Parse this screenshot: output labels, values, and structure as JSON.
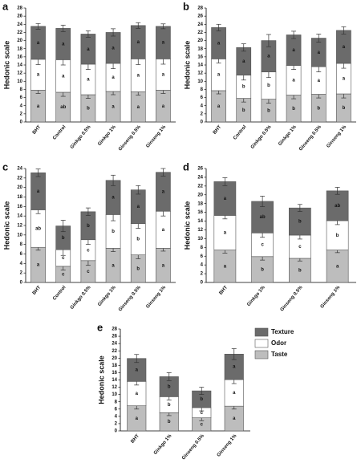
{
  "chart_data": [
    {
      "type": "bar",
      "stacked": true,
      "panel": "a",
      "ylabel": "Hedonic scale",
      "categories": [
        "BHT",
        "Control",
        "Ginkgo 0.5%",
        "Ginkgo 1%",
        "Ginseng 0.5%",
        "Ginseng 1%"
      ],
      "series": [
        {
          "name": "Taste",
          "color": "#bdbdbd",
          "values": [
            7.8,
            7.3,
            6.7,
            7.5,
            7.4,
            7.8
          ],
          "errors": [
            0.8,
            1.0,
            0.9,
            0.8,
            0.8,
            0.8
          ],
          "labels": [
            "a",
            "ab",
            "b",
            "a",
            "a",
            "a"
          ]
        },
        {
          "name": "Odor",
          "color": "#ffffff",
          "values": [
            7.6,
            8.0,
            7.5,
            6.9,
            8.1,
            7.7
          ],
          "errors": [
            1.3,
            1.3,
            1.3,
            1.3,
            1.4,
            1.3
          ],
          "labels": [
            "a",
            "a",
            "a",
            "a",
            "a",
            "a"
          ]
        },
        {
          "name": "Texture",
          "color": "#6b6b6b",
          "values": [
            8.1,
            7.7,
            7.4,
            7.6,
            8.2,
            8.0
          ],
          "errors": [
            0.7,
            0.8,
            0.8,
            0.9,
            0.7,
            0.6
          ],
          "labels": [
            "a",
            "a",
            "a",
            "a",
            "a",
            "a"
          ]
        }
      ],
      "ylim": [
        0,
        28
      ],
      "yticks": [
        0,
        2,
        4,
        6,
        8,
        10,
        12,
        14,
        16,
        18,
        20,
        22,
        24,
        26,
        28
      ]
    },
    {
      "type": "bar",
      "stacked": true,
      "panel": "b",
      "ylabel": "Hedonic scale",
      "categories": [
        "BHT",
        "Control",
        "Ginkgo 0.5%",
        "Ginkgo 1%",
        "Ginseng 0.5%",
        "Ginseng 1%"
      ],
      "series": [
        {
          "name": "Taste",
          "color": "#bdbdbd",
          "values": [
            7.7,
            5.8,
            5.6,
            6.6,
            6.8,
            6.9
          ],
          "errors": [
            0.8,
            0.9,
            1.0,
            0.9,
            0.9,
            1.0
          ],
          "labels": [
            "a",
            "b",
            "b",
            "b",
            "b",
            "b"
          ]
        },
        {
          "name": "Odor",
          "color": "#ffffff",
          "values": [
            7.8,
            5.7,
            6.7,
            7.3,
            6.8,
            7.5
          ],
          "errors": [
            1.0,
            1.2,
            1.4,
            1.0,
            1.3,
            1.2
          ],
          "labels": [
            "a",
            "b",
            "b",
            "a",
            "a",
            "a"
          ]
        },
        {
          "name": "Texture",
          "color": "#6b6b6b",
          "values": [
            7.7,
            6.8,
            7.7,
            7.5,
            7.0,
            8.1
          ],
          "errors": [
            0.8,
            0.9,
            1.5,
            0.9,
            1.0,
            0.9
          ],
          "labels": [
            "a",
            "a",
            "a",
            "a",
            "a",
            "a"
          ]
        }
      ],
      "ylim": [
        0,
        28
      ],
      "yticks": [
        0,
        2,
        4,
        6,
        8,
        10,
        12,
        14,
        16,
        18,
        20,
        22,
        24,
        26,
        28
      ]
    },
    {
      "type": "bar",
      "stacked": true,
      "panel": "c",
      "ylabel": "Hedonic scale",
      "categories": [
        "BHT",
        "Control",
        "Ginkgo 0.5%",
        "Ginkgo 1%",
        "Ginseng 0.5%",
        "Ginseng 1%"
      ],
      "series": [
        {
          "name": "Taste",
          "color": "#bdbdbd",
          "values": [
            7.4,
            3.4,
            4.6,
            7.2,
            5.8,
            7.2
          ],
          "errors": [
            0.6,
            0.8,
            1.0,
            0.7,
            0.8,
            0.6
          ],
          "labels": [
            "a",
            "c",
            "c",
            "a",
            "b",
            "a"
          ]
        },
        {
          "name": "Odor",
          "color": "#ffffff",
          "values": [
            7.9,
            3.5,
            4.4,
            7.1,
            6.6,
            7.8
          ],
          "errors": [
            0.8,
            1.2,
            1.0,
            1.3,
            1.0,
            1.0
          ],
          "labels": [
            "ab",
            "c",
            "c",
            "b",
            "b",
            "a"
          ]
        },
        {
          "name": "Texture",
          "color": "#6b6b6b",
          "values": [
            7.8,
            5.0,
            5.9,
            7.2,
            7.1,
            8.2
          ],
          "errors": [
            0.8,
            1.2,
            0.8,
            1.1,
            0.9,
            0.8
          ],
          "labels": [
            "a",
            "b",
            "b",
            "a",
            "a",
            "a"
          ]
        }
      ],
      "ylim": [
        0,
        24
      ],
      "yticks": [
        0,
        2,
        4,
        6,
        8,
        10,
        12,
        14,
        16,
        18,
        20,
        22,
        24
      ]
    },
    {
      "type": "bar",
      "stacked": true,
      "panel": "d",
      "ylabel": "Hedonic scale",
      "categories": [
        "BHT",
        "Ginkgo 1%",
        "Ginseng 0.5%",
        "Ginseng 1%"
      ],
      "series": [
        {
          "name": "Taste",
          "color": "#bdbdbd",
          "values": [
            7.4,
            5.9,
            5.5,
            7.4
          ],
          "errors": [
            0.7,
            0.8,
            0.6,
            0.6
          ],
          "labels": [
            "a",
            "b",
            "b",
            "a"
          ]
        },
        {
          "name": "Odor",
          "color": "#ffffff",
          "values": [
            7.9,
            5.4,
            5.3,
            6.7
          ],
          "errors": [
            0.8,
            1.0,
            0.9,
            0.9
          ],
          "labels": [
            "a",
            "c",
            "c",
            "b"
          ]
        },
        {
          "name": "Texture",
          "color": "#6b6b6b",
          "values": [
            7.7,
            7.2,
            6.2,
            6.8
          ],
          "errors": [
            0.9,
            1.2,
            0.8,
            0.8
          ],
          "labels": [
            "a",
            "ab",
            "b",
            "ab"
          ]
        }
      ],
      "ylim": [
        0,
        26
      ],
      "yticks": [
        0,
        2,
        4,
        6,
        8,
        10,
        12,
        14,
        16,
        18,
        20,
        22,
        24,
        26
      ]
    },
    {
      "type": "bar",
      "stacked": true,
      "panel": "e",
      "ylabel": "Hedonic scale",
      "legend": "right",
      "categories": [
        "BHT",
        "Ginkgo 1%",
        "Ginseng 0.5%",
        "Ginseng 1%"
      ],
      "series": [
        {
          "name": "Taste",
          "color": "#bdbdbd",
          "values": [
            6.9,
            5.0,
            3.6,
            6.8
          ],
          "errors": [
            0.9,
            0.8,
            0.8,
            0.8
          ],
          "labels": [
            "a",
            "b",
            "c",
            "a"
          ]
        },
        {
          "name": "Odor",
          "color": "#ffffff",
          "values": [
            6.7,
            4.4,
            2.8,
            7.3
          ],
          "errors": [
            1.0,
            0.9,
            0.9,
            1.1
          ],
          "labels": [
            "a",
            "b",
            "c",
            "a"
          ]
        },
        {
          "name": "Texture",
          "color": "#6b6b6b",
          "values": [
            6.3,
            5.5,
            4.6,
            7.0
          ],
          "errors": [
            1.1,
            1.1,
            1.0,
            1.5
          ],
          "labels": [
            "a",
            "b",
            "b",
            "a"
          ]
        }
      ],
      "ylim": [
        0,
        28
      ],
      "yticks": [
        0,
        2,
        4,
        6,
        8,
        10,
        12,
        14,
        16,
        18,
        20,
        22,
        24,
        26,
        28
      ]
    }
  ]
}
